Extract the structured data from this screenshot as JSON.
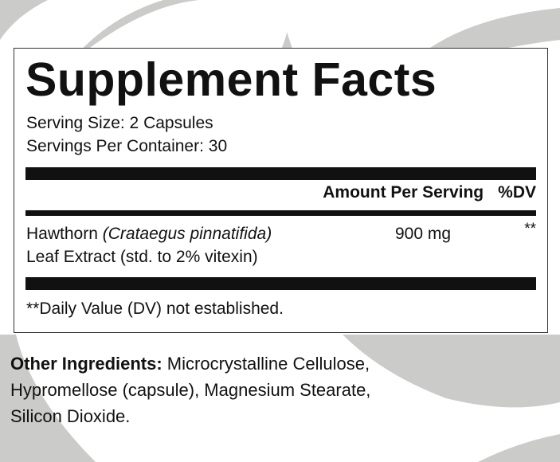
{
  "label": {
    "title": "Supplement Facts",
    "serving_size": "Serving Size: 2 Capsules",
    "servings_per_container": "Servings Per Container: 30",
    "header_amount": "Amount Per Serving",
    "header_dv": "%DV",
    "ingredient": {
      "name": "Hawthorn",
      "latin": "(Crataegus pinnatifida)",
      "line2": "Leaf Extract (std. to 2% vitexin)",
      "amount": "900 mg",
      "dv": "**"
    },
    "footnote": "**Daily Value (DV) not established."
  },
  "other_ingredients": {
    "label": "Other Ingredients:",
    "line1": " Microcrystalline Cellulose,",
    "line2": "Hypromellose (capsule), Magnesium Stearate,",
    "line3": "Silicon Dioxide."
  },
  "colors": {
    "background_swoosh": "#cbccc9",
    "text": "#111111"
  }
}
